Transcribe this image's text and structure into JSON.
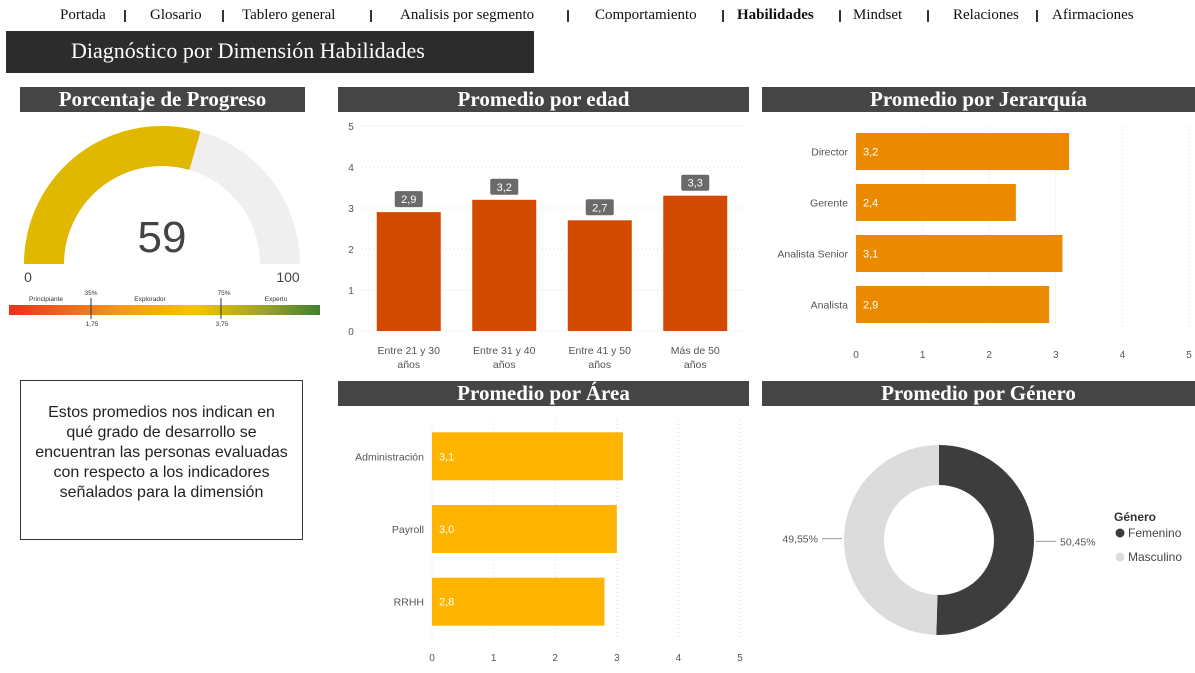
{
  "nav": {
    "items": [
      "Portada",
      "Glosario",
      "Tablero general",
      "Analisis por segmento",
      "Comportamiento",
      "Habilidades",
      "Mindset",
      "Relaciones",
      "Afirmaciones"
    ],
    "active": "Habilidades"
  },
  "page_title": "Diagnóstico por Dimensión Habilidades",
  "gauge": {
    "title": "Porcentaje de Progreso",
    "value": "59",
    "min": "0",
    "max": "100",
    "fill_color": "#e0b800",
    "scale": {
      "labels": [
        "Principiante",
        "Explorador",
        "Experto"
      ],
      "markers": [
        {
          "pct": "35%",
          "value": "1,75"
        },
        {
          "pct": "75%",
          "value": "3,75"
        }
      ]
    }
  },
  "note": {
    "text": "Estos promedios nos indican en qué grado de desarrollo se encuentran las personas evaluadas con respecto a los indicadores señalados para la dimensión"
  },
  "chart_data": [
    {
      "id": "edad",
      "type": "bar",
      "title": "Promedio por edad",
      "categories": [
        "Entre 21 y 30 años",
        "Entre 31 y 40 años",
        "Entre 41 y 50 años",
        "Más de 50 años"
      ],
      "category_lines": [
        [
          "Entre 21 y 30",
          "años"
        ],
        [
          "Entre 31 y 40",
          "años"
        ],
        [
          "Entre 41 y 50",
          "años"
        ],
        [
          "Más de 50",
          "años"
        ]
      ],
      "values": [
        2.9,
        3.2,
        2.7,
        3.3
      ],
      "labels": [
        "2,9",
        "3,2",
        "2,7",
        "3,3"
      ],
      "ylim": [
        0,
        5
      ],
      "ticks": [
        "0",
        "1",
        "2",
        "3",
        "4",
        "5"
      ],
      "color": "#d24a00",
      "grid": true
    },
    {
      "id": "jerarquia",
      "type": "bar",
      "orientation": "horizontal",
      "title": "Promedio por Jerarquía",
      "categories": [
        "Director",
        "Gerente",
        "Analista Senior",
        "Analista"
      ],
      "values": [
        3.2,
        2.4,
        3.1,
        2.9
      ],
      "labels": [
        "3,2",
        "2,4",
        "3,1",
        "2,9"
      ],
      "xlim": [
        0,
        5
      ],
      "ticks": [
        "0",
        "1",
        "2",
        "3",
        "4",
        "5"
      ],
      "color": "#eb8a00",
      "grid": true
    },
    {
      "id": "area",
      "type": "bar",
      "orientation": "horizontal",
      "title": "Promedio por Área",
      "categories": [
        "Administración",
        "Payroll",
        "RRHH"
      ],
      "values": [
        3.1,
        3.0,
        2.8
      ],
      "labels": [
        "3,1",
        "3,0",
        "2,8"
      ],
      "xlim": [
        0,
        5
      ],
      "ticks": [
        "0",
        "1",
        "2",
        "3",
        "4",
        "5"
      ],
      "color": "#ffb400",
      "grid": true
    },
    {
      "id": "genero",
      "type": "pie",
      "donut": true,
      "title": "Promedio por Género",
      "legend_title": "Género",
      "legend_position": "right",
      "categories": [
        "Femenino",
        "Masculino"
      ],
      "values": [
        50.45,
        49.55
      ],
      "labels": [
        "50,45%",
        "49,55%"
      ],
      "colors": [
        "#3d3d3d",
        "#dcdcdc"
      ]
    }
  ]
}
